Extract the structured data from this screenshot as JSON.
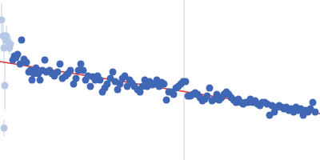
{
  "chart_data": {
    "type": "scatter",
    "xlim": [
      0,
      400
    ],
    "ylim": [
      0,
      200
    ],
    "tick_labels": false,
    "grid": false,
    "series": [
      {
        "color": "#b6c8e6",
        "marker": "circle",
        "x": [
          2,
          4,
          5,
          6,
          7,
          8,
          10,
          12,
          13,
          5
        ],
        "values": [
          175,
          155,
          140,
          93,
          150,
          155,
          148,
          140,
          145,
          40
        ],
        "errors": [
          20,
          15,
          20,
          30,
          10,
          12,
          10,
          8,
          10,
          10
        ]
      },
      {
        "color": "#3f67b5",
        "marker": "circle",
        "x": [
          16,
          18,
          20,
          22,
          25,
          27,
          30,
          33,
          36,
          38,
          40,
          42,
          45,
          48,
          50,
          53,
          56,
          58,
          62,
          65,
          68,
          72,
          75,
          78,
          82,
          85,
          88,
          92,
          95,
          98,
          101,
          104,
          107,
          110,
          113,
          116,
          119,
          122,
          125,
          128,
          131,
          134,
          138,
          141,
          144,
          147,
          150,
          153,
          156,
          159,
          162,
          165,
          168,
          172,
          175,
          178,
          181,
          184,
          187,
          190,
          193,
          196,
          199,
          202,
          205,
          208,
          211,
          214,
          217,
          220,
          223,
          226,
          229,
          232,
          235,
          238,
          241,
          244,
          247,
          250,
          253,
          256,
          259,
          262,
          265,
          268,
          271,
          274,
          277,
          280,
          283,
          286,
          289,
          292,
          295,
          298,
          301,
          304,
          307,
          310,
          313,
          316,
          319,
          322,
          325,
          328,
          331,
          334,
          337,
          340,
          343,
          346,
          349,
          352,
          355,
          358,
          361,
          364,
          367,
          370,
          373,
          376,
          379,
          382,
          385,
          388,
          391,
          394
        ],
        "values": [
          125,
          130,
          128,
          132,
          120,
          150,
          126,
          122,
          110,
          112,
          100,
          108,
          115,
          108,
          100,
          112,
          125,
          110,
          112,
          108,
          105,
          110,
          120,
          102,
          105,
          108,
          112,
          95,
          102,
          112,
          120,
          112,
          100,
          105,
          92,
          104,
          100,
          105,
          100,
          85,
          90,
          95,
          102,
          110,
          98,
          88,
          95,
          102,
          105,
          92,
          100,
          96,
          92,
          88,
          85,
          92,
          100,
          92,
          98,
          94,
          95,
          100,
          92,
          97,
          95,
          75,
          85,
          85,
          82,
          90,
          92,
          95,
          98,
          98,
          80,
          80,
          82,
          84,
          82,
          78,
          74,
          76,
          80,
          90,
          74,
          76,
          82,
          75,
          78,
          82,
          85,
          82,
          78,
          75,
          72,
          76,
          72,
          70,
          72,
          72,
          76,
          72,
          74,
          70,
          68,
          72,
          72,
          70,
          56,
          68,
          60,
          66,
          68,
          66,
          64,
          66,
          62,
          64,
          60,
          66,
          62,
          64,
          56,
          62,
          60,
          64,
          72,
          60
        ],
        "errors": 3
      }
    ],
    "fit": {
      "x": [
        0,
        400
      ],
      "values": [
        123,
        58
      ],
      "color": "#e0312f"
    },
    "reference_x": {
      "value": 230,
      "color": "#c8d2e0"
    }
  }
}
